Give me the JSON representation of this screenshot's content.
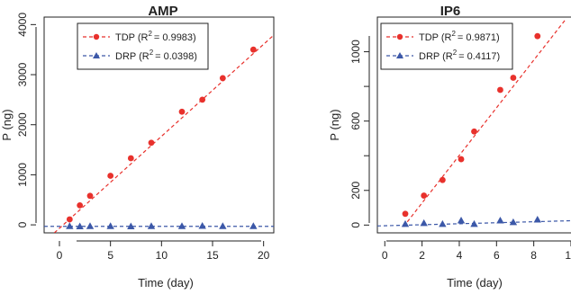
{
  "chart_data": [
    {
      "type": "scatter",
      "title": "AMP",
      "xlabel": "Time (day)",
      "ylabel": "P (ng)",
      "xlim": [
        -1.5,
        21
      ],
      "ylim": [
        -160,
        4150
      ],
      "xticks": [
        0,
        5,
        10,
        15,
        20
      ],
      "yticks": [
        0,
        1000,
        2000,
        3000,
        4000
      ],
      "legend_position": "top-left",
      "series": [
        {
          "name": "TDP (R",
          "r2": "= 0.9983)",
          "color": "#e8312c",
          "marker": "circle",
          "x": [
            1,
            2,
            3,
            5,
            7,
            9,
            12,
            14,
            16,
            19
          ],
          "y": [
            110,
            390,
            580,
            980,
            1330,
            1640,
            2260,
            2500,
            2930,
            3500
          ],
          "fit": {
            "x": [
              -0.5,
              21
            ],
            "y": [
              -160,
              3790
            ]
          }
        },
        {
          "name": "DRP (R",
          "r2": "= 0.0398)",
          "color": "#3c58a8",
          "marker": "triangle",
          "x": [
            1,
            2,
            3,
            5,
            7,
            9,
            12,
            14,
            16,
            19
          ],
          "y": [
            -30,
            -35,
            -30,
            -30,
            -35,
            -30,
            -30,
            -25,
            -30,
            -30
          ],
          "fit": {
            "x": [
              -1.5,
              21
            ],
            "y": [
              -30,
              -30
            ]
          }
        }
      ]
    },
    {
      "type": "scatter",
      "title": "IP6",
      "xlabel": "Time (day)",
      "ylabel": "P (ng)",
      "xlim": [
        -0.4,
        10
      ],
      "ylim": [
        -45,
        1200
      ],
      "xticks": [
        0,
        2,
        4,
        6,
        8,
        10
      ],
      "ytick_values": [
        0,
        200,
        400,
        600,
        800,
        1000
      ],
      "ytick_labels": [
        "0",
        "200",
        "",
        "600",
        "",
        "1000"
      ],
      "legend_position": "top-left",
      "series": [
        {
          "name": "TDP (R",
          "r2": "= 0.9871)",
          "color": "#e8312c",
          "marker": "circle",
          "x": [
            1.1,
            2.1,
            3.1,
            4.1,
            4.8,
            6.2,
            6.9,
            8.2
          ],
          "y": [
            65,
            170,
            260,
            380,
            540,
            780,
            850,
            1090
          ],
          "fit": {
            "x": [
              1.0,
              9.7
            ],
            "y": [
              -10,
              1185
            ]
          }
        },
        {
          "name": "DRP (R",
          "r2": "= 0.4117)",
          "color": "#3c58a8",
          "marker": "triangle",
          "x": [
            1.1,
            2.1,
            3.1,
            4.1,
            4.8,
            6.2,
            6.9,
            8.2
          ],
          "y": [
            5,
            10,
            5,
            25,
            5,
            25,
            15,
            30
          ],
          "fit": {
            "x": [
              -0.4,
              10
            ],
            "y": [
              -5,
              25
            ]
          }
        }
      ]
    }
  ]
}
